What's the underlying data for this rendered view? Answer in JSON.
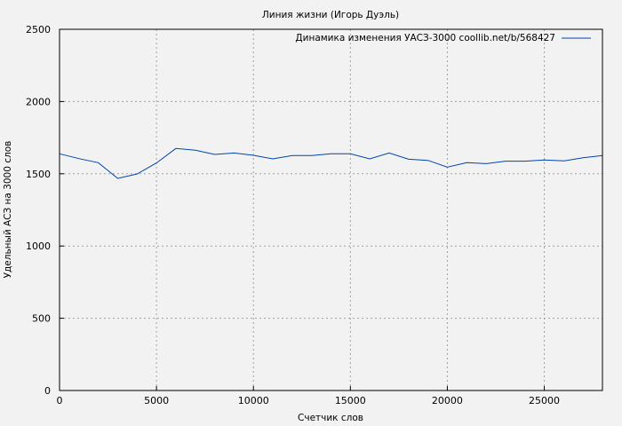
{
  "chart_data": {
    "type": "line",
    "title": "Линия жизни (Игорь Дуэль)",
    "xlabel": "Счетчик слов",
    "ylabel": "Удельный АСЗ на 3000 слов",
    "xlim": [
      0,
      28000
    ],
    "ylim": [
      0,
      2500
    ],
    "xticks": [
      0,
      5000,
      10000,
      15000,
      20000,
      25000
    ],
    "yticks": [
      0,
      500,
      1000,
      1500,
      2000,
      2500
    ],
    "grid": true,
    "legend_position": "top-right",
    "series": [
      {
        "name": "Динамика изменения УАСЗ-3000 coollib.net/b/568427",
        "color": "#0044aa",
        "x": [
          0,
          1000,
          2000,
          3000,
          4000,
          5000,
          6000,
          7000,
          8000,
          9000,
          10000,
          11000,
          12000,
          13000,
          14000,
          15000,
          16000,
          17000,
          18000,
          19000,
          20000,
          21000,
          22000,
          23000,
          24000,
          25000,
          26000,
          27000,
          28000
        ],
        "y": [
          1638,
          1605,
          1577,
          1468,
          1499,
          1575,
          1675,
          1663,
          1634,
          1644,
          1628,
          1603,
          1626,
          1626,
          1638,
          1638,
          1603,
          1644,
          1601,
          1593,
          1546,
          1577,
          1570,
          1587,
          1587,
          1595,
          1589,
          1611,
          1626
        ]
      }
    ]
  }
}
